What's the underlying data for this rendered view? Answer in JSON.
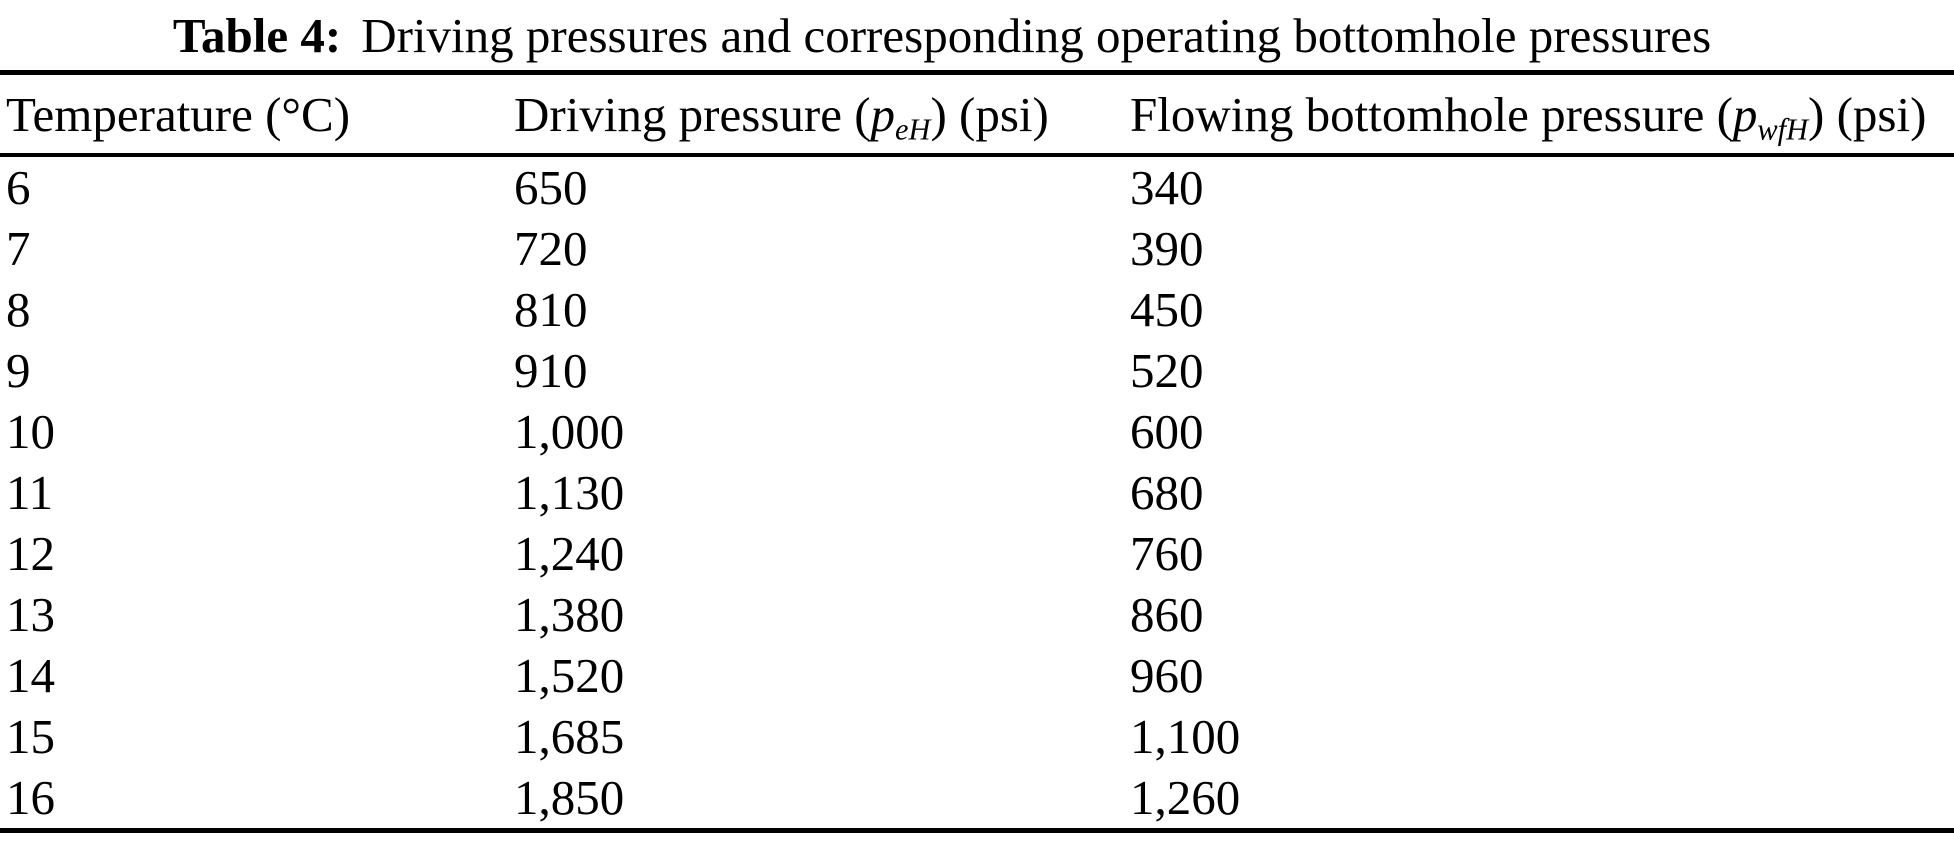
{
  "caption": {
    "label": "Table 4:",
    "text": "Driving pressures and corresponding operating bottomhole pressures"
  },
  "table": {
    "columns": [
      {
        "pre": "Temperature (°C)",
        "sym": "",
        "sub": "",
        "post": ""
      },
      {
        "pre": "Driving pressure (",
        "sym": "p",
        "sub": "eH",
        "post": ") (psi)"
      },
      {
        "pre": "Flowing bottomhole pressure (",
        "sym": "p",
        "sub": "wfH",
        "post": ") (psi)"
      }
    ],
    "rows": [
      [
        "6",
        "650",
        "340"
      ],
      [
        "7",
        "720",
        "390"
      ],
      [
        "8",
        "810",
        "450"
      ],
      [
        "9",
        "910",
        "520"
      ],
      [
        "10",
        "1,000",
        "600"
      ],
      [
        "11",
        "1,130",
        "680"
      ],
      [
        "12",
        "1,240",
        "760"
      ],
      [
        "13",
        "1,380",
        "860"
      ],
      [
        "14",
        "1,520",
        "960"
      ],
      [
        "15",
        "1,685",
        "1,100"
      ],
      [
        "16",
        "1,850",
        "1,260"
      ]
    ]
  },
  "colors": {
    "text": "#000000",
    "background": "#ffffff",
    "rule": "#000000"
  }
}
